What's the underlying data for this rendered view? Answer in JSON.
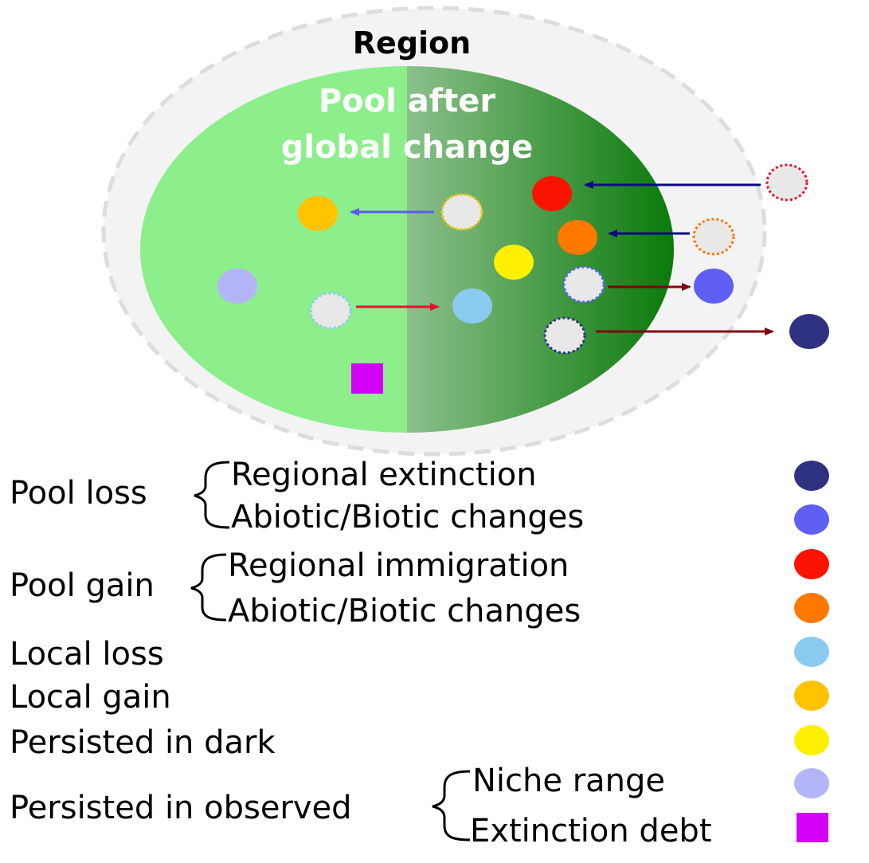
{
  "diagram": {
    "region_label": "Region",
    "pool_label_line1": "Pool after",
    "pool_label_line2": "global change"
  },
  "legend": {
    "groups": [
      {
        "label": "Pool loss",
        "items": [
          {
            "label": "Regional extinction",
            "color": "#2f3280"
          },
          {
            "label": "Abiotic/Biotic changes",
            "color": "#5f5ff5"
          }
        ]
      },
      {
        "label": "Pool gain",
        "items": [
          {
            "label": "Regional immigration",
            "color": "#fa1400"
          },
          {
            "label": "Abiotic/Biotic changes",
            "color": "#ff7800"
          }
        ]
      }
    ],
    "singles": [
      {
        "label": "Local loss",
        "color": "#8ccbf0"
      },
      {
        "label": "Local gain",
        "color": "#ffc300"
      },
      {
        "label": "Persisted in dark",
        "color": "#ffef00"
      }
    ],
    "observed_group": {
      "label": "Persisted in observed",
      "items": [
        {
          "label": "Niche range",
          "color": "#b4b4f8",
          "shape": "ellipse"
        },
        {
          "label": "Extinction debt",
          "color": "#d400f5",
          "shape": "square"
        }
      ]
    }
  },
  "colors": {
    "region_fill": "#f3f3f3",
    "region_border": "#dddddd",
    "pool_light": "#8cef8c",
    "pool_mid": "#8cc08c",
    "pool_dark": "#0a7a0a",
    "ghost_fill": "#e8e8e8",
    "arrow_navy": "#0b0b80",
    "arrow_blue": "#5b5bf0",
    "arrow_red": "#e8112d",
    "arrow_darkred": "#800010"
  }
}
